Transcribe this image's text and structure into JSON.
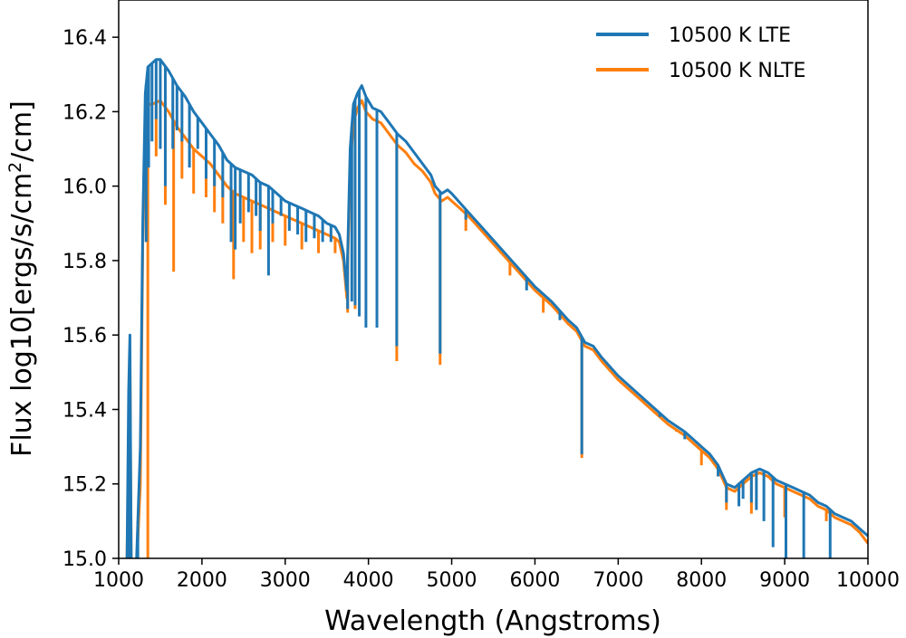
{
  "chart_data": {
    "type": "line",
    "title": "",
    "xlabel": "Wavelength (Angstroms)",
    "ylabel_prefix": "Flux log10[ergs/s/cm",
    "ylabel_sup": "2",
    "ylabel_suffix": "/cm]",
    "xlim": [
      1000,
      10000
    ],
    "ylim": [
      15.0,
      16.5
    ],
    "xticks": [
      1000,
      2000,
      3000,
      4000,
      5000,
      6000,
      7000,
      8000,
      9000,
      10000
    ],
    "yticks": [
      15.0,
      15.2,
      15.4,
      15.6,
      15.8,
      16.0,
      16.2,
      16.4
    ],
    "xtick_labels": [
      "1000",
      "2000",
      "3000",
      "4000",
      "5000",
      "6000",
      "7000",
      "8000",
      "9000",
      "10000"
    ],
    "ytick_labels": [
      "15.0",
      "15.2",
      "15.4",
      "15.6",
      "15.8",
      "16.0",
      "16.2",
      "16.4"
    ],
    "grid": false,
    "legend_position": "top-right",
    "series": [
      {
        "name": "10500 K LTE",
        "color": "#1f77b4",
        "points": [
          [
            1100,
            15.0
          ],
          [
            1120,
            15.45
          ],
          [
            1135,
            15.6
          ],
          [
            1150,
            15.0
          ],
          [
            1200,
            14.9
          ],
          [
            1260,
            15.3
          ],
          [
            1290,
            15.9
          ],
          [
            1320,
            16.25
          ],
          [
            1350,
            16.32
          ],
          [
            1400,
            16.33
          ],
          [
            1450,
            16.34
          ],
          [
            1500,
            16.34
          ],
          [
            1600,
            16.31
          ],
          [
            1700,
            16.27
          ],
          [
            1800,
            16.24
          ],
          [
            1900,
            16.2
          ],
          [
            2000,
            16.17
          ],
          [
            2100,
            16.14
          ],
          [
            2200,
            16.11
          ],
          [
            2300,
            16.07
          ],
          [
            2400,
            16.05
          ],
          [
            2500,
            16.04
          ],
          [
            2600,
            16.03
          ],
          [
            2700,
            16.01
          ],
          [
            2800,
            16.0
          ],
          [
            2900,
            15.98
          ],
          [
            3000,
            15.96
          ],
          [
            3100,
            15.95
          ],
          [
            3200,
            15.94
          ],
          [
            3300,
            15.93
          ],
          [
            3400,
            15.92
          ],
          [
            3500,
            15.9
          ],
          [
            3600,
            15.89
          ],
          [
            3650,
            15.87
          ],
          [
            3700,
            15.82
          ],
          [
            3740,
            15.72
          ],
          [
            3780,
            16.1
          ],
          [
            3820,
            16.22
          ],
          [
            3870,
            16.25
          ],
          [
            3920,
            16.27
          ],
          [
            3970,
            16.24
          ],
          [
            4050,
            16.21
          ],
          [
            4150,
            16.2
          ],
          [
            4250,
            16.17
          ],
          [
            4350,
            16.14
          ],
          [
            4450,
            16.12
          ],
          [
            4550,
            16.09
          ],
          [
            4650,
            16.06
          ],
          [
            4750,
            16.03
          ],
          [
            4800,
            16.0
          ],
          [
            4880,
            15.98
          ],
          [
            4950,
            15.99
          ],
          [
            5000,
            15.98
          ],
          [
            5200,
            15.93
          ],
          [
            5400,
            15.88
          ],
          [
            5600,
            15.83
          ],
          [
            5800,
            15.78
          ],
          [
            6000,
            15.73
          ],
          [
            6200,
            15.69
          ],
          [
            6400,
            15.64
          ],
          [
            6500,
            15.62
          ],
          [
            6600,
            15.58
          ],
          [
            6700,
            15.57
          ],
          [
            6800,
            15.54
          ],
          [
            7000,
            15.49
          ],
          [
            7200,
            15.45
          ],
          [
            7400,
            15.41
          ],
          [
            7600,
            15.37
          ],
          [
            7800,
            15.34
          ],
          [
            8000,
            15.3
          ],
          [
            8100,
            15.28
          ],
          [
            8200,
            15.25
          ],
          [
            8300,
            15.2
          ],
          [
            8400,
            15.19
          ],
          [
            8500,
            15.21
          ],
          [
            8600,
            15.23
          ],
          [
            8700,
            15.24
          ],
          [
            8800,
            15.23
          ],
          [
            8900,
            15.21
          ],
          [
            9000,
            15.2
          ],
          [
            9100,
            15.19
          ],
          [
            9200,
            15.18
          ],
          [
            9300,
            15.17
          ],
          [
            9400,
            15.15
          ],
          [
            9500,
            15.14
          ],
          [
            9600,
            15.12
          ],
          [
            9700,
            15.11
          ],
          [
            9800,
            15.1
          ],
          [
            9900,
            15.08
          ],
          [
            10000,
            15.06
          ]
        ],
        "absorption_lines": [
          [
            1130,
            15.0
          ],
          [
            1175,
            15.0
          ],
          [
            1230,
            15.0
          ],
          [
            1330,
            15.85
          ],
          [
            1360,
            16.05
          ],
          [
            1400,
            16.12
          ],
          [
            1450,
            16.18
          ],
          [
            1500,
            16.1
          ],
          [
            1560,
            16.0
          ],
          [
            1650,
            16.1
          ],
          [
            1700,
            16.15
          ],
          [
            1760,
            16.12
          ],
          [
            1850,
            16.05
          ],
          [
            1950,
            16.1
          ],
          [
            2050,
            16.02
          ],
          [
            2150,
            16.0
          ],
          [
            2250,
            15.97
          ],
          [
            2350,
            15.85
          ],
          [
            2400,
            15.83
          ],
          [
            2460,
            15.9
          ],
          [
            2560,
            15.93
          ],
          [
            2650,
            15.92
          ],
          [
            2700,
            15.88
          ],
          [
            2800,
            15.76
          ],
          [
            2850,
            15.9
          ],
          [
            2950,
            15.92
          ],
          [
            3050,
            15.88
          ],
          [
            3150,
            15.87
          ],
          [
            3250,
            15.85
          ],
          [
            3350,
            15.86
          ],
          [
            3450,
            15.85
          ],
          [
            3550,
            15.85
          ],
          [
            3750,
            15.67
          ],
          [
            3800,
            15.69
          ],
          [
            3840,
            15.68
          ],
          [
            3890,
            15.65
          ],
          [
            3970,
            15.62
          ],
          [
            4102,
            15.62
          ],
          [
            4340,
            15.57
          ],
          [
            4861,
            15.55
          ],
          [
            5170,
            15.91
          ],
          [
            5900,
            15.72
          ],
          [
            6300,
            15.64
          ],
          [
            6563,
            15.28
          ],
          [
            7500,
            15.38
          ],
          [
            7800,
            15.32
          ],
          [
            8200,
            15.22
          ],
          [
            8300,
            15.15
          ],
          [
            8450,
            15.14
          ],
          [
            8500,
            15.16
          ],
          [
            8600,
            15.15
          ],
          [
            8660,
            15.13
          ],
          [
            8750,
            15.1
          ],
          [
            8860,
            15.03
          ],
          [
            9015,
            14.98
          ],
          [
            9229,
            14.98
          ],
          [
            9546,
            14.98
          ]
        ]
      },
      {
        "name": "10500 K NLTE",
        "color": "#ff7f0e",
        "points": [
          [
            1100,
            15.0
          ],
          [
            1135,
            15.55
          ],
          [
            1150,
            15.0
          ],
          [
            1200,
            14.9
          ],
          [
            1260,
            15.2
          ],
          [
            1290,
            15.85
          ],
          [
            1320,
            16.15
          ],
          [
            1350,
            16.22
          ],
          [
            1400,
            16.22
          ],
          [
            1500,
            16.23
          ],
          [
            1600,
            16.2
          ],
          [
            1700,
            16.16
          ],
          [
            1800,
            16.13
          ],
          [
            1900,
            16.1
          ],
          [
            2000,
            16.08
          ],
          [
            2100,
            16.06
          ],
          [
            2200,
            16.03
          ],
          [
            2300,
            16.0
          ],
          [
            2400,
            15.98
          ],
          [
            2500,
            15.97
          ],
          [
            2600,
            15.96
          ],
          [
            2700,
            15.95
          ],
          [
            2800,
            15.94
          ],
          [
            2900,
            15.93
          ],
          [
            3000,
            15.92
          ],
          [
            3100,
            15.91
          ],
          [
            3200,
            15.9
          ],
          [
            3300,
            15.89
          ],
          [
            3400,
            15.88
          ],
          [
            3500,
            15.87
          ],
          [
            3600,
            15.86
          ],
          [
            3650,
            15.85
          ],
          [
            3700,
            15.8
          ],
          [
            3740,
            15.7
          ],
          [
            3780,
            16.05
          ],
          [
            3820,
            16.17
          ],
          [
            3870,
            16.21
          ],
          [
            3920,
            16.23
          ],
          [
            3970,
            16.2
          ],
          [
            4050,
            16.18
          ],
          [
            4150,
            16.17
          ],
          [
            4250,
            16.14
          ],
          [
            4350,
            16.11
          ],
          [
            4450,
            16.09
          ],
          [
            4550,
            16.06
          ],
          [
            4650,
            16.04
          ],
          [
            4750,
            16.01
          ],
          [
            4800,
            15.98
          ],
          [
            4880,
            15.96
          ],
          [
            4950,
            15.97
          ],
          [
            5000,
            15.96
          ],
          [
            5200,
            15.92
          ],
          [
            5400,
            15.87
          ],
          [
            5600,
            15.82
          ],
          [
            5800,
            15.77
          ],
          [
            6000,
            15.72
          ],
          [
            6200,
            15.68
          ],
          [
            6400,
            15.63
          ],
          [
            6500,
            15.61
          ],
          [
            6600,
            15.57
          ],
          [
            6700,
            15.56
          ],
          [
            6800,
            15.53
          ],
          [
            7000,
            15.48
          ],
          [
            7200,
            15.44
          ],
          [
            7400,
            15.4
          ],
          [
            7600,
            15.36
          ],
          [
            7800,
            15.33
          ],
          [
            8000,
            15.29
          ],
          [
            8100,
            15.27
          ],
          [
            8200,
            15.24
          ],
          [
            8300,
            15.19
          ],
          [
            8400,
            15.18
          ],
          [
            8500,
            15.2
          ],
          [
            8600,
            15.22
          ],
          [
            8700,
            15.23
          ],
          [
            8800,
            15.22
          ],
          [
            8900,
            15.2
          ],
          [
            9000,
            15.19
          ],
          [
            9100,
            15.18
          ],
          [
            9200,
            15.17
          ],
          [
            9300,
            15.16
          ],
          [
            9400,
            15.14
          ],
          [
            9500,
            15.13
          ],
          [
            9600,
            15.11
          ],
          [
            9700,
            15.1
          ],
          [
            9800,
            15.09
          ],
          [
            9900,
            15.07
          ],
          [
            10000,
            15.04
          ]
        ],
        "absorption_lines": [
          [
            1350,
            15.0
          ],
          [
            1450,
            16.08
          ],
          [
            1560,
            15.95
          ],
          [
            1660,
            15.77
          ],
          [
            1760,
            16.02
          ],
          [
            1900,
            15.98
          ],
          [
            2050,
            15.97
          ],
          [
            2150,
            15.93
          ],
          [
            2250,
            15.9
          ],
          [
            2380,
            15.75
          ],
          [
            2500,
            15.85
          ],
          [
            2600,
            15.82
          ],
          [
            2700,
            15.83
          ],
          [
            2850,
            15.85
          ],
          [
            3000,
            15.84
          ],
          [
            3200,
            15.83
          ],
          [
            3400,
            15.82
          ],
          [
            3600,
            15.82
          ],
          [
            3750,
            15.66
          ],
          [
            3840,
            15.67
          ],
          [
            4340,
            15.53
          ],
          [
            4861,
            15.52
          ],
          [
            5170,
            15.88
          ],
          [
            5700,
            15.76
          ],
          [
            6100,
            15.66
          ],
          [
            6563,
            15.27
          ],
          [
            7300,
            15.43
          ],
          [
            7700,
            15.34
          ],
          [
            8000,
            15.25
          ],
          [
            8300,
            15.13
          ],
          [
            8600,
            15.12
          ],
          [
            9000,
            15.11
          ],
          [
            9500,
            15.1
          ],
          [
            10000,
            15.05
          ]
        ]
      }
    ]
  }
}
